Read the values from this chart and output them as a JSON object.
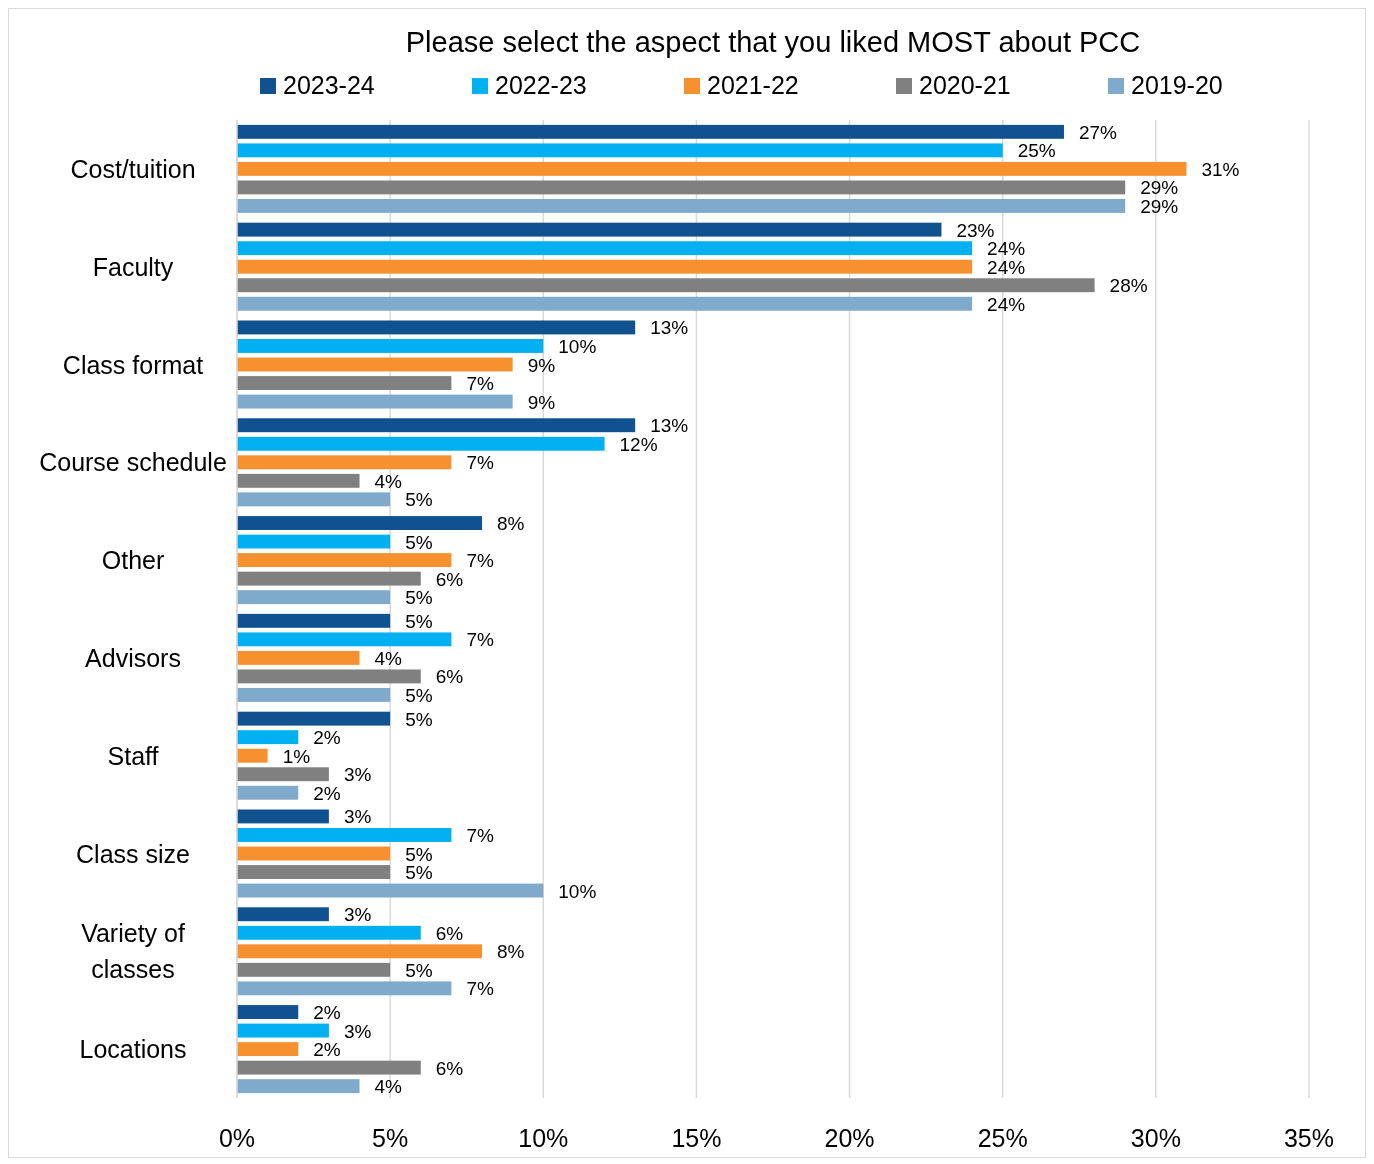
{
  "chart_data": {
    "type": "bar",
    "orientation": "horizontal",
    "title": "Please select the aspect that you liked MOST about PCC",
    "categories": [
      "Cost/tuition",
      "Faculty",
      "Class format",
      "Course schedule",
      "Other",
      "Advisors",
      "Staff",
      "Class size",
      "Variety of classes",
      "Locations"
    ],
    "series": [
      {
        "name": "2023-24",
        "color": "#0f528f",
        "values": [
          27,
          23,
          13,
          13,
          8,
          5,
          5,
          3,
          3,
          2
        ],
        "value_labels": [
          "27%",
          "23%",
          "13%",
          "13%",
          "8%",
          "5%",
          "5%",
          "3%",
          "3%",
          "2%"
        ]
      },
      {
        "name": "2022-23",
        "color": "#00b0f0",
        "values": [
          25,
          24,
          10,
          12,
          5,
          7,
          2,
          7,
          6,
          3
        ],
        "value_labels": [
          "25%",
          "24%",
          "10%",
          "12%",
          "5%",
          "7%",
          "2%",
          "7%",
          "6%",
          "3%"
        ]
      },
      {
        "name": "2021-22",
        "color": "#f7902f",
        "values": [
          31,
          24,
          9,
          7,
          7,
          4,
          1,
          5,
          8,
          2
        ],
        "value_labels": [
          "31%",
          "24%",
          "9%",
          "7%",
          "7%",
          "4%",
          "1%",
          "5%",
          "8%",
          "2%"
        ]
      },
      {
        "name": "2020-21",
        "color": "#808080",
        "values": [
          29,
          28,
          7,
          4,
          6,
          6,
          3,
          5,
          5,
          6
        ],
        "value_labels": [
          "29%",
          "28%",
          "7%",
          "4%",
          "6%",
          "6%",
          "3%",
          "5%",
          "5%",
          "6%"
        ]
      },
      {
        "name": "2019-20",
        "color": "#7faacb",
        "values": [
          29,
          24,
          9,
          5,
          5,
          5,
          2,
          10,
          7,
          4
        ],
        "value_labels": [
          "29%",
          "24%",
          "9%",
          "5%",
          "5%",
          "5%",
          "2%",
          "10%",
          "7%",
          "4%"
        ]
      }
    ],
    "xlim": [
      0,
      35
    ],
    "xticks": [
      {
        "value": 0,
        "label": "0%"
      },
      {
        "value": 5,
        "label": "5%"
      },
      {
        "value": 10,
        "label": "10%"
      },
      {
        "value": 15,
        "label": "15%"
      },
      {
        "value": 20,
        "label": "20%"
      },
      {
        "value": 25,
        "label": "25%"
      },
      {
        "value": 30,
        "label": "30%"
      },
      {
        "value": 35,
        "label": "35%"
      }
    ],
    "grid": "x",
    "legend": "top"
  }
}
